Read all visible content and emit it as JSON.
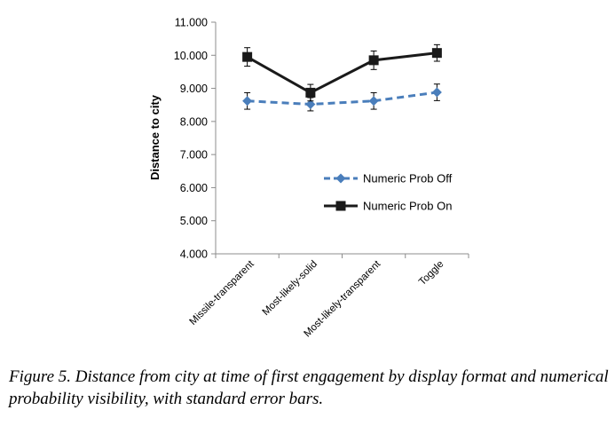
{
  "caption": "Figure 5. Distance from city at time of first engagement by display format and numerical probability visibility, with standard error bars.",
  "chart_data": {
    "type": "line",
    "title": "",
    "xlabel": "",
    "ylabel": "Distance to city",
    "ylim": [
      4.0,
      11.0
    ],
    "yticks": [
      "4.000",
      "5.000",
      "6.000",
      "7.000",
      "8.000",
      "9.000",
      "10.000",
      "11.000"
    ],
    "categories": [
      "Missile-transparent",
      "Most-likely-solid",
      "Most-likely-transparent",
      "Toggle"
    ],
    "grid": false,
    "legend_position": "right",
    "series": [
      {
        "name": "Numeric Prob Off",
        "values": [
          8.62,
          8.52,
          8.62,
          8.88
        ],
        "errors": [
          0.25,
          0.2,
          0.25,
          0.25
        ],
        "color": "#4a7ebb",
        "marker": "diamond",
        "line_style": "dashed"
      },
      {
        "name": "Numeric Prob On",
        "values": [
          9.95,
          8.87,
          9.85,
          10.07
        ],
        "errors": [
          0.28,
          0.25,
          0.28,
          0.25
        ],
        "color": "#1a1a1a",
        "marker": "square",
        "line_style": "solid"
      }
    ]
  }
}
